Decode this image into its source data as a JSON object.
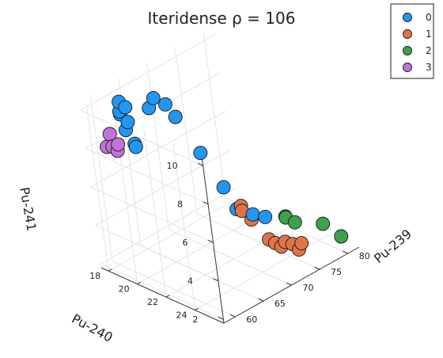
{
  "chart_data": {
    "type": "scatter",
    "title": "Iteridense ρ = 106",
    "xlabel": "Pu-239",
    "ylabel": "Pu-240",
    "zlabel": "Pu-241",
    "xlim": [
      58,
      82
    ],
    "ylim": [
      17.5,
      26
    ],
    "zlim": [
      1.8,
      10.5
    ],
    "x_ticks": [
      "60",
      "65",
      "70",
      "75",
      "80"
    ],
    "y_ticks": [
      "18",
      "20",
      "22",
      "24"
    ],
    "z_ticks": [
      "2",
      "4",
      "6",
      "8",
      "10"
    ],
    "legend_position": "top-right",
    "series": [
      {
        "name": "0",
        "color": "#2196f3",
        "points": [
          [
            62,
            18.6,
            9.5
          ],
          [
            61.5,
            18.8,
            9.8
          ],
          [
            62.5,
            18.4,
            10.0
          ],
          [
            63,
            18.6,
            9.7
          ],
          [
            62.2,
            19.0,
            9.2
          ],
          [
            63.5,
            18.2,
            8.3
          ],
          [
            64,
            18.5,
            7.6
          ],
          [
            64.8,
            18.2,
            7.2
          ],
          [
            66,
            19.0,
            9.3
          ],
          [
            66.5,
            19.2,
            9.8
          ],
          [
            67,
            19.8,
            9.6
          ],
          [
            67.5,
            20.2,
            9.0
          ],
          [
            69.5,
            20.8,
            7.0
          ],
          [
            71,
            21.5,
            5.2
          ],
          [
            72,
            21.8,
            4.0
          ],
          [
            73,
            22.5,
            3.8
          ],
          [
            77,
            21.6,
            2.7
          ]
        ]
      },
      {
        "name": "1",
        "color": "#e07449",
        "points": [
          [
            71,
            22.6,
            4.6
          ],
          [
            71.5,
            22.4,
            4.2
          ],
          [
            72,
            22.8,
            3.8
          ],
          [
            74,
            23.0,
            2.5
          ],
          [
            74.5,
            23.2,
            2.3
          ],
          [
            75,
            23.4,
            2.1
          ],
          [
            75.5,
            23.5,
            2.3
          ],
          [
            76,
            23.8,
            2.2
          ],
          [
            76.5,
            24.0,
            1.9
          ],
          [
            77.5,
            23.8,
            2.0
          ]
        ]
      },
      {
        "name": "2",
        "color": "#3da14b",
        "points": [
          [
            79,
            22.2,
            2.6
          ],
          [
            79.5,
            22.0,
            2.4
          ],
          [
            80,
            22.4,
            2.2
          ],
          [
            81,
            24.0,
            2.5
          ],
          [
            81.5,
            25.0,
            2.1
          ]
        ]
      },
      {
        "name": "3",
        "color": "#c073d8",
        "points": [
          [
            60.0,
            18.2,
            8.0
          ],
          [
            60.5,
            18.4,
            8.0
          ],
          [
            60.8,
            18.6,
            7.8
          ],
          [
            61.0,
            18.6,
            8.1
          ],
          [
            61.2,
            18.0,
            8.4
          ]
        ]
      }
    ]
  }
}
